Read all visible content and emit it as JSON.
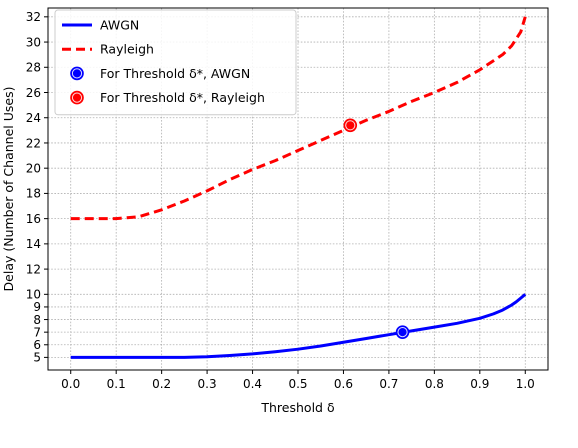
{
  "chart_data": {
    "type": "line",
    "xlabel": "Threshold δ",
    "ylabel": "Delay (Number of Channel Uses)",
    "xlim": [
      -0.05,
      1.05
    ],
    "ylim": [
      4,
      32.7
    ],
    "xticks": [
      0.0,
      0.1,
      0.2,
      0.3,
      0.4,
      0.5,
      0.6,
      0.7,
      0.8,
      0.9,
      1.0
    ],
    "xtick_labels": [
      "0.0",
      "0.1",
      "0.2",
      "0.3",
      "0.4",
      "0.5",
      "0.6",
      "0.7",
      "0.8",
      "0.9",
      "1.0"
    ],
    "yticks": [
      5,
      6,
      7,
      8,
      9,
      10,
      12,
      14,
      16,
      18,
      20,
      22,
      24,
      26,
      28,
      30,
      32
    ],
    "ytick_labels": [
      "5",
      "6",
      "7",
      "8",
      "9",
      "10",
      "12",
      "14",
      "16",
      "18",
      "20",
      "22",
      "24",
      "26",
      "28",
      "30",
      "32"
    ],
    "grid": true,
    "legend_position": "top-left",
    "series": [
      {
        "name": "AWGN",
        "color": "#0000ff",
        "style": "solid",
        "x": [
          0.0,
          0.1,
          0.2,
          0.25,
          0.3,
          0.35,
          0.4,
          0.45,
          0.5,
          0.55,
          0.6,
          0.65,
          0.7,
          0.75,
          0.8,
          0.85,
          0.9,
          0.93,
          0.95,
          0.97,
          0.98,
          0.99,
          1.0
        ],
        "y": [
          5.0,
          5.0,
          5.0,
          5.0,
          5.05,
          5.15,
          5.28,
          5.45,
          5.65,
          5.9,
          6.2,
          6.5,
          6.8,
          7.1,
          7.4,
          7.7,
          8.1,
          8.45,
          8.75,
          9.15,
          9.4,
          9.7,
          10.0
        ]
      },
      {
        "name": "Rayleigh",
        "color": "#ff0000",
        "style": "dashed",
        "x": [
          0.0,
          0.05,
          0.1,
          0.15,
          0.2,
          0.25,
          0.3,
          0.35,
          0.4,
          0.45,
          0.5,
          0.55,
          0.6,
          0.65,
          0.7,
          0.75,
          0.8,
          0.85,
          0.9,
          0.95,
          0.97,
          0.99,
          1.0
        ],
        "y": [
          16.0,
          16.0,
          16.0,
          16.15,
          16.7,
          17.4,
          18.2,
          19.1,
          19.9,
          20.6,
          21.4,
          22.2,
          23.0,
          23.8,
          24.5,
          25.3,
          26.0,
          26.8,
          27.8,
          29.0,
          29.7,
          30.8,
          32.0
        ]
      }
    ],
    "markers": [
      {
        "name": "For Threshold δ*, AWGN",
        "x": 0.73,
        "y": 7.0,
        "color": "#0000ff"
      },
      {
        "name": "For Threshold δ*, Rayleigh",
        "x": 0.615,
        "y": 23.4,
        "color": "#ff0000"
      }
    ],
    "legend": [
      {
        "label": "AWGN",
        "kind": "line",
        "color": "#0000ff",
        "style": "solid"
      },
      {
        "label": "Rayleigh",
        "kind": "line",
        "color": "#ff0000",
        "style": "dashed"
      },
      {
        "label": "For Threshold δ*, AWGN",
        "kind": "marker",
        "color": "#0000ff"
      },
      {
        "label": "For Threshold δ*, Rayleigh",
        "kind": "marker",
        "color": "#ff0000"
      }
    ]
  }
}
